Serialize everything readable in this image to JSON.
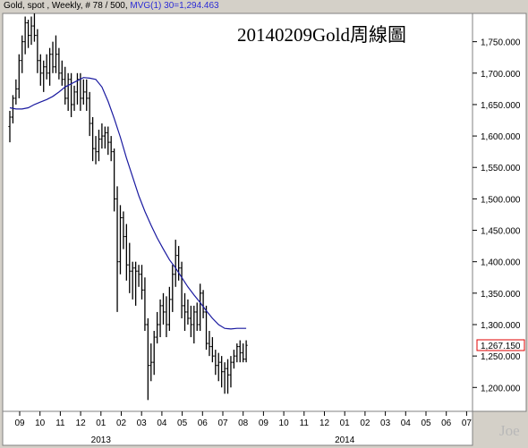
{
  "header": {
    "main": "Gold, spot , Weekly, # 78 / 500, ",
    "mvg": "MVG(1) 30=1,294.463"
  },
  "colors": {
    "bars": "#000000",
    "ma": "#1a1aa0",
    "last_price_box": "#e00000",
    "background": "#ffffff",
    "frame": "#d4d0c8"
  },
  "chart_data": {
    "type": "ohlc",
    "title": "20140209Gold周線圖",
    "watermark": "Joe",
    "last_price": "1,267.150",
    "y_ticks": [
      "1,750.000",
      "1,700.000",
      "1,650.000",
      "1,600.000",
      "1,550.000",
      "1,500.000",
      "1,450.000",
      "1,400.000",
      "1,350.000",
      "1,300.000",
      "1,250.000",
      "1,200.000"
    ],
    "y_tick_values": [
      1750,
      1700,
      1650,
      1600,
      1550,
      1500,
      1450,
      1400,
      1350,
      1300,
      1250,
      1200
    ],
    "ylim": [
      1162,
      1795
    ],
    "x_months": [
      "09",
      "10",
      "11",
      "12",
      "01",
      "02",
      "03",
      "04",
      "05",
      "06",
      "07",
      "08",
      "09",
      "10",
      "11",
      "12",
      "01",
      "02",
      "03",
      "04",
      "05",
      "06",
      "07"
    ],
    "x_years": [
      {
        "label": "2013",
        "month_index": 4
      },
      {
        "label": "2014",
        "month_index": 16
      }
    ],
    "bars": [
      [
        1615,
        1640,
        1590,
        1630
      ],
      [
        1630,
        1665,
        1620,
        1660
      ],
      [
        1660,
        1690,
        1650,
        1675
      ],
      [
        1675,
        1730,
        1660,
        1720
      ],
      [
        1720,
        1760,
        1700,
        1750
      ],
      [
        1750,
        1790,
        1730,
        1780
      ],
      [
        1780,
        1785,
        1740,
        1760
      ],
      [
        1760,
        1790,
        1745,
        1775
      ],
      [
        1775,
        1795,
        1750,
        1760
      ],
      [
        1760,
        1770,
        1700,
        1720
      ],
      [
        1720,
        1730,
        1680,
        1700
      ],
      [
        1700,
        1720,
        1670,
        1710
      ],
      [
        1710,
        1730,
        1690,
        1700
      ],
      [
        1700,
        1740,
        1680,
        1730
      ],
      [
        1730,
        1750,
        1700,
        1710
      ],
      [
        1710,
        1760,
        1700,
        1730
      ],
      [
        1730,
        1740,
        1690,
        1700
      ],
      [
        1700,
        1720,
        1680,
        1690
      ],
      [
        1690,
        1710,
        1650,
        1660
      ],
      [
        1660,
        1700,
        1640,
        1690
      ],
      [
        1690,
        1700,
        1630,
        1650
      ],
      [
        1650,
        1680,
        1640,
        1670
      ],
      [
        1670,
        1700,
        1650,
        1690
      ],
      [
        1690,
        1700,
        1640,
        1660
      ],
      [
        1660,
        1690,
        1650,
        1670
      ],
      [
        1670,
        1690,
        1640,
        1660
      ],
      [
        1660,
        1670,
        1600,
        1620
      ],
      [
        1620,
        1630,
        1560,
        1580
      ],
      [
        1580,
        1600,
        1555,
        1575
      ],
      [
        1575,
        1610,
        1560,
        1595
      ],
      [
        1595,
        1620,
        1580,
        1600
      ],
      [
        1600,
        1615,
        1580,
        1605
      ],
      [
        1605,
        1615,
        1570,
        1590
      ],
      [
        1590,
        1600,
        1560,
        1575
      ],
      [
        1575,
        1580,
        1480,
        1500
      ],
      [
        1500,
        1520,
        1320,
        1400
      ],
      [
        1400,
        1490,
        1380,
        1470
      ],
      [
        1470,
        1480,
        1420,
        1440
      ],
      [
        1440,
        1460,
        1370,
        1395
      ],
      [
        1395,
        1430,
        1350,
        1385
      ],
      [
        1385,
        1400,
        1340,
        1390
      ],
      [
        1390,
        1400,
        1330,
        1385
      ],
      [
        1385,
        1395,
        1360,
        1380
      ],
      [
        1380,
        1395,
        1340,
        1355
      ],
      [
        1355,
        1375,
        1290,
        1300
      ],
      [
        1300,
        1310,
        1180,
        1235
      ],
      [
        1235,
        1270,
        1210,
        1240
      ],
      [
        1240,
        1290,
        1220,
        1280
      ],
      [
        1280,
        1320,
        1270,
        1300
      ],
      [
        1300,
        1340,
        1280,
        1330
      ],
      [
        1330,
        1350,
        1300,
        1320
      ],
      [
        1320,
        1345,
        1280,
        1300
      ],
      [
        1300,
        1360,
        1290,
        1340
      ],
      [
        1340,
        1395,
        1320,
        1380
      ],
      [
        1380,
        1435,
        1360,
        1410
      ],
      [
        1410,
        1425,
        1370,
        1390
      ],
      [
        1390,
        1400,
        1310,
        1330
      ],
      [
        1330,
        1350,
        1290,
        1320
      ],
      [
        1320,
        1340,
        1300,
        1310
      ],
      [
        1310,
        1330,
        1280,
        1300
      ],
      [
        1300,
        1330,
        1270,
        1320
      ],
      [
        1320,
        1335,
        1290,
        1300
      ],
      [
        1300,
        1365,
        1290,
        1350
      ],
      [
        1350,
        1355,
        1310,
        1320
      ],
      [
        1320,
        1330,
        1260,
        1270
      ],
      [
        1270,
        1290,
        1250,
        1265
      ],
      [
        1265,
        1280,
        1240,
        1250
      ],
      [
        1250,
        1260,
        1220,
        1235
      ],
      [
        1235,
        1255,
        1210,
        1240
      ],
      [
        1240,
        1250,
        1200,
        1225
      ],
      [
        1225,
        1240,
        1190,
        1230
      ],
      [
        1230,
        1245,
        1190,
        1220
      ],
      [
        1220,
        1250,
        1200,
        1240
      ],
      [
        1240,
        1260,
        1230,
        1250
      ],
      [
        1250,
        1270,
        1240,
        1265
      ],
      [
        1265,
        1275,
        1240,
        1255
      ],
      [
        1255,
        1270,
        1240,
        1245
      ],
      [
        1245,
        1275,
        1240,
        1267
      ]
    ],
    "ma": [
      [
        0,
        1645
      ],
      [
        2,
        1643
      ],
      [
        4,
        1643
      ],
      [
        6,
        1645
      ],
      [
        8,
        1650
      ],
      [
        10,
        1654
      ],
      [
        12,
        1658
      ],
      [
        14,
        1663
      ],
      [
        16,
        1670
      ],
      [
        18,
        1678
      ],
      [
        20,
        1683
      ],
      [
        22,
        1688
      ],
      [
        24,
        1693
      ],
      [
        26,
        1692
      ],
      [
        28,
        1690
      ],
      [
        30,
        1678
      ],
      [
        32,
        1655
      ],
      [
        34,
        1628
      ],
      [
        36,
        1598
      ],
      [
        38,
        1565
      ],
      [
        40,
        1535
      ],
      [
        42,
        1505
      ],
      [
        44,
        1480
      ],
      [
        46,
        1458
      ],
      [
        48,
        1438
      ],
      [
        50,
        1420
      ],
      [
        52,
        1403
      ],
      [
        54,
        1390
      ],
      [
        56,
        1375
      ],
      [
        58,
        1360
      ],
      [
        60,
        1347
      ],
      [
        62,
        1335
      ],
      [
        64,
        1322
      ],
      [
        66,
        1310
      ],
      [
        68,
        1300
      ],
      [
        70,
        1294
      ],
      [
        72,
        1293
      ],
      [
        74,
        1294
      ],
      [
        77,
        1294
      ]
    ]
  }
}
